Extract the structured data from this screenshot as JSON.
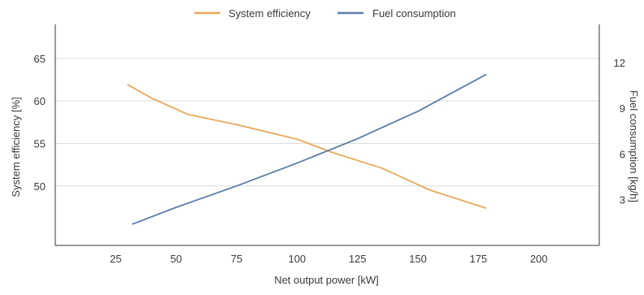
{
  "chart_data": {
    "type": "line",
    "title": "",
    "xlabel": "Net output power [kW]",
    "ylabel_left": "System efficiency [%]",
    "ylabel_right": "Fuel consumption [kg/h]",
    "xlim": [
      0,
      225
    ],
    "ylim_left": [
      43,
      69
    ],
    "ylim_right": [
      0,
      14.5
    ],
    "x_ticks": [
      25,
      50,
      75,
      100,
      125,
      150,
      175,
      200
    ],
    "y_left_ticks": [
      50,
      55,
      60,
      65
    ],
    "y_right_ticks": [
      3,
      6,
      9,
      12
    ],
    "grid": true,
    "legend_position": "top-center",
    "series": [
      {
        "name": "System efficiency",
        "axis": "left",
        "color": "#E8A85A",
        "x": [
          30,
          40,
          55,
          75,
          100,
          115,
          135,
          155,
          178
        ],
        "y": [
          61.9,
          60.3,
          58.4,
          57.2,
          55.5,
          53.9,
          52.1,
          49.5,
          47.4
        ]
      },
      {
        "name": "Fuel consumption",
        "axis": "right",
        "color": "#5B7DA8",
        "x": [
          32,
          50,
          75,
          100,
          125,
          150,
          178
        ],
        "y": [
          1.4,
          2.5,
          3.9,
          5.4,
          7.0,
          8.8,
          11.2
        ]
      }
    ],
    "axis_color": "#333333",
    "grid_color": "#dcdcdc"
  }
}
